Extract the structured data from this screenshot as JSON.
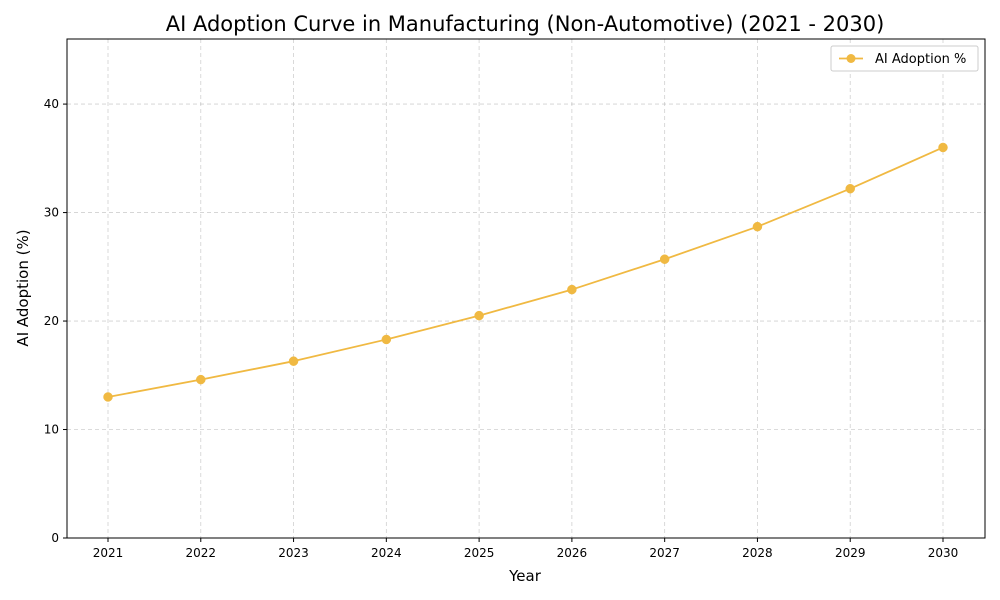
{
  "chart_data": {
    "type": "line",
    "title": "AI Adoption Curve in Manufacturing (Non-Automotive) (2021 - 2030)",
    "xlabel": "Year",
    "ylabel": "AI Adoption (%)",
    "x": [
      "2021",
      "2022",
      "2023",
      "2024",
      "2025",
      "2026",
      "2027",
      "2028",
      "2029",
      "2030"
    ],
    "series": [
      {
        "name": "AI Adoption %",
        "values": [
          13.0,
          14.6,
          16.3,
          18.3,
          20.5,
          22.9,
          25.7,
          28.7,
          32.2,
          36.0
        ],
        "color": "#f0b942"
      }
    ],
    "yticks": [
      0,
      10,
      20,
      30,
      40
    ],
    "ylim": [
      0,
      46
    ],
    "grid": true,
    "legend_position": "top-right"
  }
}
